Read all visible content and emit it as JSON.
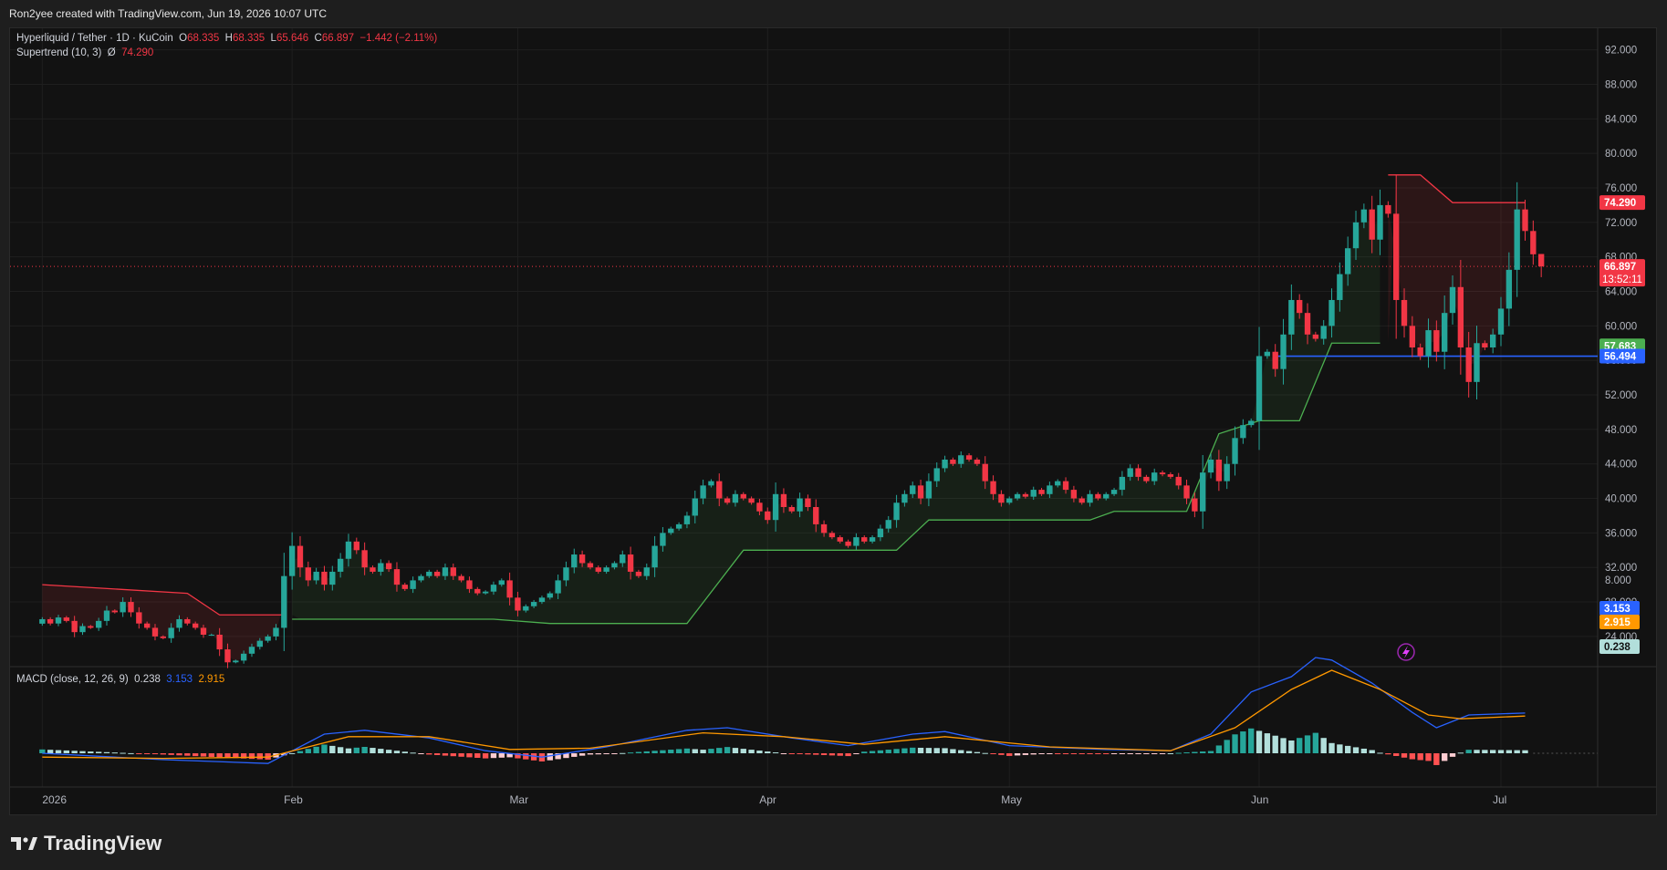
{
  "header": {
    "attribution": "Ron2yee created with TradingView.com, Jun 19, 2026 10:07 UTC"
  },
  "legend": {
    "symbol": "Hyperliquid / Tether · 1D · KuCoin",
    "open_label": "O",
    "open": "68.335",
    "high_label": "H",
    "high": "68.335",
    "low_label": "L",
    "low": "65.646",
    "close_label": "C",
    "close": "66.897",
    "change": "−1.442 (−2.11%)",
    "supertrend_label": "Supertrend (10, 3)",
    "supertrend_symbol": "Ø",
    "supertrend_value": "74.290",
    "macd_label": "MACD (close, 12, 26, 9)",
    "macd_hist": "0.238",
    "macd_line": "3.153",
    "macd_signal": "2.915"
  },
  "tags": {
    "supertrend": "74.290",
    "price": "66.897",
    "countdown": "13:52:11",
    "support_green": "57.683",
    "support_blue": "56.494",
    "macd_line": "3.153",
    "macd_signal": "2.915",
    "macd_hist": "0.238"
  },
  "footer": {
    "brand": "TradingView"
  },
  "colors": {
    "up": "#26a69a",
    "down": "#f23645",
    "supertrend_up": "#4caf50",
    "supertrend_down": "#f23645",
    "macd": "#2962ff",
    "signal": "#ff9800",
    "hline": "#2962ff"
  },
  "chart_data": [
    {
      "type": "candlestick",
      "title": "Hyperliquid / Tether · 1D · KuCoin",
      "y_ticks": [
        "92.000",
        "88.000",
        "84.000",
        "80.000",
        "76.000",
        "72.000",
        "68.000",
        "64.000",
        "60.000",
        "56.000",
        "52.000",
        "48.000",
        "44.000",
        "40.000",
        "36.000",
        "32.000",
        "28.000",
        "24.000"
      ],
      "ylim": [
        20.5,
        94.5
      ],
      "x_ticks": [
        {
          "label": "2026",
          "day": 0
        },
        {
          "label": "Feb",
          "day": 31
        },
        {
          "label": "Mar",
          "day": 59
        },
        {
          "label": "Apr",
          "day": 90
        },
        {
          "label": "May",
          "day": 120
        },
        {
          "label": "Jun",
          "day": 151
        },
        {
          "label": "Jul",
          "day": 181
        }
      ],
      "xlim": [
        -4,
        193
      ],
      "horizontal_line": 56.494,
      "last_price": 66.897,
      "series": [
        {
          "name": "Price",
          "close": [
            26.0,
            25.5,
            26.2,
            25.8,
            24.5,
            25.2,
            25.0,
            25.8,
            27.0,
            26.8,
            28.0,
            26.8,
            25.5,
            25.0,
            24.0,
            23.8,
            25.0,
            26.0,
            25.5,
            25.0,
            24.2,
            24.2,
            22.5,
            21.0,
            21.2,
            22.0,
            22.8,
            23.5,
            24.0,
            25.0,
            31.0,
            34.5,
            32.0,
            30.5,
            31.5,
            30.0,
            31.5,
            33.0,
            35.0,
            34.0,
            32.0,
            31.5,
            32.5,
            31.8,
            30.0,
            29.5,
            30.5,
            31.0,
            31.5,
            31.0,
            32.0,
            31.0,
            30.5,
            29.5,
            29.0,
            29.2,
            30.0,
            30.5,
            28.5,
            27.0,
            27.5,
            28.0,
            28.5,
            29.0,
            30.5,
            32.0,
            33.5,
            32.5,
            32.0,
            31.5,
            32.0,
            32.5,
            33.5,
            31.5,
            31.0,
            32.0,
            34.5,
            36.0,
            36.5,
            37.0,
            38.0,
            40.0,
            41.5,
            42.0,
            40.0,
            39.5,
            40.5,
            40.0,
            39.5,
            38.5,
            37.5,
            40.5,
            39.0,
            38.5,
            40.0,
            39.0,
            37.0,
            36.0,
            35.5,
            35.0,
            34.5,
            35.5,
            35.0,
            35.5,
            36.5,
            37.5,
            39.5,
            40.5,
            41.5,
            40.0,
            42.0,
            43.5,
            44.5,
            44.0,
            45.0,
            44.5,
            44.0,
            42.0,
            40.5,
            39.5,
            40.0,
            40.5,
            40.2,
            41.0,
            40.5,
            41.5,
            42.0,
            41.0,
            40.0,
            39.5,
            40.5,
            40.0,
            40.5,
            41.0,
            42.5,
            43.5,
            42.5,
            42.0,
            43.0,
            42.8,
            42.5,
            41.5,
            40.0,
            38.5,
            43.0,
            44.5,
            42.0,
            44.0,
            47.0,
            48.5,
            49.0,
            56.5,
            57.0,
            55.0,
            59.0,
            63.0,
            61.5,
            59.0,
            58.5,
            60.0,
            63.0,
            66.0,
            69.0,
            72.0,
            73.5,
            70.0,
            74.0,
            73.0,
            63.0,
            60.0,
            57.5,
            56.5,
            59.5,
            57.0,
            61.5,
            64.5,
            57.5,
            53.5,
            58.0,
            57.5,
            59.0,
            62.0,
            66.5,
            73.5,
            71.0,
            68.3,
            66.897
          ]
        }
      ],
      "supertrend": [
        {
          "day": 0,
          "value": 30.0,
          "trend": "down"
        },
        {
          "day": 18,
          "value": 29.0,
          "trend": "down"
        },
        {
          "day": 22,
          "value": 26.5,
          "trend": "down"
        },
        {
          "day": 30,
          "value": 26.5,
          "trend": "down"
        },
        {
          "day": 31,
          "value": 26.0,
          "trend": "up"
        },
        {
          "day": 56,
          "value": 26.0,
          "trend": "up"
        },
        {
          "day": 63,
          "value": 25.5,
          "trend": "up"
        },
        {
          "day": 80,
          "value": 25.5,
          "trend": "up"
        },
        {
          "day": 87,
          "value": 34.0,
          "trend": "up"
        },
        {
          "day": 106,
          "value": 34.0,
          "trend": "up"
        },
        {
          "day": 110,
          "value": 37.5,
          "trend": "up"
        },
        {
          "day": 130,
          "value": 37.5,
          "trend": "up"
        },
        {
          "day": 133,
          "value": 38.5,
          "trend": "up"
        },
        {
          "day": 142,
          "value": 38.5,
          "trend": "up"
        },
        {
          "day": 146,
          "value": 47.5,
          "trend": "up"
        },
        {
          "day": 151,
          "value": 49.0,
          "trend": "up"
        },
        {
          "day": 156,
          "value": 49.0,
          "trend": "up"
        },
        {
          "day": 160,
          "value": 58.0,
          "trend": "up"
        },
        {
          "day": 166,
          "value": 58.0,
          "trend": "up"
        },
        {
          "day": 167,
          "value": 77.5,
          "trend": "down"
        },
        {
          "day": 171,
          "value": 77.5,
          "trend": "down"
        },
        {
          "day": 175,
          "value": 74.29,
          "trend": "down"
        },
        {
          "day": 184,
          "value": 74.29,
          "trend": "down"
        }
      ]
    },
    {
      "type": "macd",
      "title": "MACD (close, 12, 26, 9)",
      "y_ticks": [
        "8.000"
      ],
      "macd_line_last": 3.153,
      "signal_last": 2.915,
      "histogram_last": 0.238,
      "macd_line": [
        {
          "day": 0,
          "value": 0.0
        },
        {
          "day": 15,
          "value": -0.5
        },
        {
          "day": 28,
          "value": -0.8
        },
        {
          "day": 35,
          "value": 1.5
        },
        {
          "day": 40,
          "value": 1.8
        },
        {
          "day": 48,
          "value": 1.2
        },
        {
          "day": 55,
          "value": 0.2
        },
        {
          "day": 62,
          "value": -0.3
        },
        {
          "day": 70,
          "value": 0.5
        },
        {
          "day": 80,
          "value": 1.8
        },
        {
          "day": 85,
          "value": 2.0
        },
        {
          "day": 93,
          "value": 1.2
        },
        {
          "day": 100,
          "value": 0.6
        },
        {
          "day": 108,
          "value": 1.5
        },
        {
          "day": 112,
          "value": 1.7
        },
        {
          "day": 120,
          "value": 0.6
        },
        {
          "day": 132,
          "value": 0.3
        },
        {
          "day": 140,
          "value": 0.2
        },
        {
          "day": 145,
          "value": 1.5
        },
        {
          "day": 150,
          "value": 4.8
        },
        {
          "day": 155,
          "value": 6.0
        },
        {
          "day": 158,
          "value": 7.5
        },
        {
          "day": 160,
          "value": 7.3
        },
        {
          "day": 165,
          "value": 5.5
        },
        {
          "day": 170,
          "value": 3.2
        },
        {
          "day": 173,
          "value": 2.0
        },
        {
          "day": 177,
          "value": 3.0
        },
        {
          "day": 184,
          "value": 3.153
        }
      ],
      "signal_line": [
        {
          "day": 0,
          "value": -0.3
        },
        {
          "day": 15,
          "value": -0.4
        },
        {
          "day": 28,
          "value": -0.3
        },
        {
          "day": 38,
          "value": 1.3
        },
        {
          "day": 48,
          "value": 1.3
        },
        {
          "day": 58,
          "value": 0.3
        },
        {
          "day": 68,
          "value": 0.4
        },
        {
          "day": 82,
          "value": 1.6
        },
        {
          "day": 92,
          "value": 1.3
        },
        {
          "day": 102,
          "value": 0.7
        },
        {
          "day": 112,
          "value": 1.3
        },
        {
          "day": 125,
          "value": 0.5
        },
        {
          "day": 140,
          "value": 0.2
        },
        {
          "day": 148,
          "value": 2.0
        },
        {
          "day": 155,
          "value": 5.0
        },
        {
          "day": 160,
          "value": 6.5
        },
        {
          "day": 166,
          "value": 5.0
        },
        {
          "day": 172,
          "value": 3.0
        },
        {
          "day": 176,
          "value": 2.7
        },
        {
          "day": 184,
          "value": 2.915
        }
      ]
    }
  ]
}
